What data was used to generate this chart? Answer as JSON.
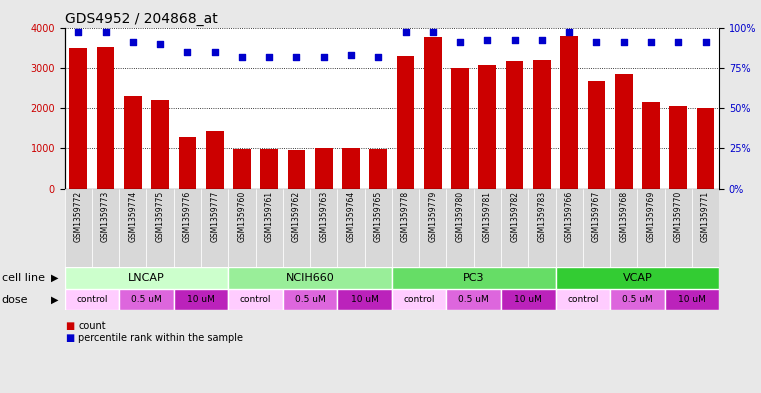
{
  "title": "GDS4952 / 204868_at",
  "samples": [
    "GSM1359772",
    "GSM1359773",
    "GSM1359774",
    "GSM1359775",
    "GSM1359776",
    "GSM1359777",
    "GSM1359760",
    "GSM1359761",
    "GSM1359762",
    "GSM1359763",
    "GSM1359764",
    "GSM1359765",
    "GSM1359778",
    "GSM1359779",
    "GSM1359780",
    "GSM1359781",
    "GSM1359782",
    "GSM1359783",
    "GSM1359766",
    "GSM1359767",
    "GSM1359768",
    "GSM1359769",
    "GSM1359770",
    "GSM1359771"
  ],
  "counts": [
    3500,
    3510,
    2290,
    2190,
    1280,
    1420,
    980,
    990,
    950,
    1010,
    1000,
    980,
    3290,
    3760,
    3000,
    3080,
    3180,
    3200,
    3780,
    2680,
    2850,
    2150,
    2050,
    2000
  ],
  "percentiles": [
    97,
    97,
    91,
    90,
    85,
    85,
    82,
    82,
    82,
    82,
    83,
    82,
    97,
    97,
    91,
    92,
    92,
    92,
    97,
    91,
    91,
    91,
    91,
    91
  ],
  "bar_color": "#cc0000",
  "dot_color": "#0000cc",
  "ylim_left": [
    0,
    4000
  ],
  "ylim_right": [
    0,
    100
  ],
  "yticks_left": [
    0,
    1000,
    2000,
    3000,
    4000
  ],
  "yticks_right": [
    0,
    25,
    50,
    75,
    100
  ],
  "cell_lines": [
    {
      "label": "LNCAP",
      "start": 0,
      "end": 6,
      "color": "#ccffcc"
    },
    {
      "label": "NCIH660",
      "start": 6,
      "end": 12,
      "color": "#99ee99"
    },
    {
      "label": "PC3",
      "start": 12,
      "end": 18,
      "color": "#66dd66"
    },
    {
      "label": "VCAP",
      "start": 18,
      "end": 24,
      "color": "#33cc33"
    }
  ],
  "doses": [
    {
      "label": "control",
      "start": 0,
      "end": 2
    },
    {
      "label": "0.5 uM",
      "start": 2,
      "end": 4
    },
    {
      "label": "10 uM",
      "start": 4,
      "end": 6
    },
    {
      "label": "control",
      "start": 6,
      "end": 8
    },
    {
      "label": "0.5 uM",
      "start": 8,
      "end": 10
    },
    {
      "label": "10 uM",
      "start": 10,
      "end": 12
    },
    {
      "label": "control",
      "start": 12,
      "end": 14
    },
    {
      "label": "0.5 uM",
      "start": 14,
      "end": 16
    },
    {
      "label": "10 uM",
      "start": 16,
      "end": 18
    },
    {
      "label": "control",
      "start": 18,
      "end": 20
    },
    {
      "label": "0.5 uM",
      "start": 20,
      "end": 22
    },
    {
      "label": "10 uM",
      "start": 22,
      "end": 24
    }
  ],
  "dose_colors": {
    "control": "#ffccff",
    "0.5 uM": "#dd66dd",
    "10 uM": "#bb22bb"
  },
  "legend_count_color": "#cc0000",
  "legend_dot_color": "#0000cc",
  "fig_bg_color": "#e8e8e8",
  "plot_bg_color": "#ffffff",
  "tick_fontsize": 7,
  "label_fontsize": 8,
  "title_fontsize": 10
}
